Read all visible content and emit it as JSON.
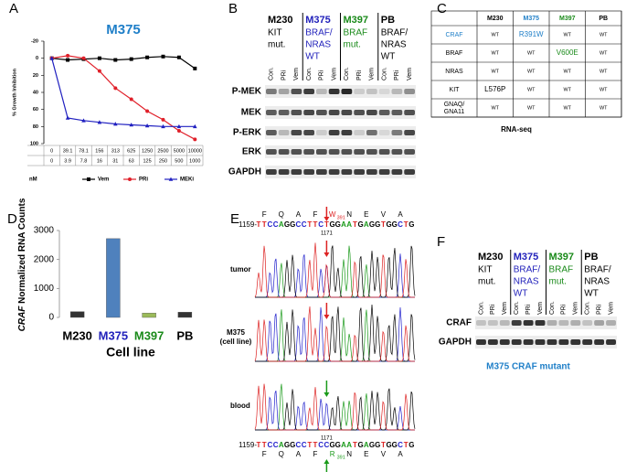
{
  "panel_labels": [
    "A",
    "B",
    "C",
    "D",
    "E",
    "F"
  ],
  "chart_data": [
    {
      "type": "line",
      "title": "M375",
      "title_color": "#1f7fc8",
      "y_label": "% Growth Inhibition",
      "categories": [
        "0",
        "39.1",
        "78.1",
        "156",
        "313",
        "625",
        "1250",
        "2500",
        "5000",
        "10000"
      ],
      "categories_row2": [
        "0",
        "3.9",
        "7.8",
        "16",
        "31",
        "63",
        "125",
        "250",
        "500",
        "1000"
      ],
      "x_unit": "nM",
      "series": [
        {
          "name": "Vem",
          "color": "#000000",
          "marker": "square",
          "values": [
            0,
            2,
            1,
            0,
            2,
            1,
            -1,
            -2,
            -1,
            12
          ]
        },
        {
          "name": "PRi",
          "color": "#e0202a",
          "marker": "circle",
          "values": [
            0,
            -3,
            0,
            15,
            35,
            48,
            62,
            72,
            85,
            95
          ]
        },
        {
          "name": "MEKi",
          "color": "#2020c0",
          "marker": "triangle",
          "values": [
            0,
            70,
            73,
            75,
            77,
            78,
            79,
            80,
            80,
            80
          ]
        }
      ],
      "ylim": [
        100,
        -20
      ],
      "yticks": [
        -20,
        0,
        20,
        40,
        60,
        80,
        100
      ]
    },
    {
      "type": "bar",
      "y_label_italic": "CRAF",
      "y_label": "Normalized RNA Counts",
      "x_label": "Cell line",
      "categories": [
        "M230",
        "M375",
        "M397",
        "PB"
      ],
      "category_colors": [
        "#000000",
        "#2222bb",
        "#1a8a1a",
        "#000000"
      ],
      "values": [
        200,
        2720,
        150,
        180
      ],
      "colors": [
        "#333333",
        "#4f81bd",
        "#9bbb59",
        "#333333"
      ],
      "ylim": [
        0,
        3000
      ],
      "yticks": [
        0,
        1000,
        2000,
        3000
      ]
    }
  ],
  "blot_b": {
    "groups": [
      {
        "name": "M230",
        "color": "#000000",
        "desc": [
          "KIT",
          "mut."
        ]
      },
      {
        "name": "M375",
        "color": "#2222bb",
        "desc": [
          "BRAF/",
          "NRAS",
          "WT"
        ]
      },
      {
        "name": "M397",
        "color": "#1a8a1a",
        "desc": [
          "BRAF",
          "mut."
        ]
      },
      {
        "name": "PB",
        "color": "#000000",
        "desc": [
          "BRAF/",
          "NRAS",
          "WT"
        ]
      }
    ],
    "lanes": [
      "Con.",
      "PRi",
      "Vem"
    ],
    "rows": [
      "P-MEK",
      "MEK",
      "P-ERK",
      "ERK",
      "GAPDH"
    ]
  },
  "table_c": {
    "columns": [
      {
        "name": "M230",
        "color": "#000000"
      },
      {
        "name": "M375",
        "color": "#1f7fc8"
      },
      {
        "name": "M397",
        "color": "#1a8a1a"
      },
      {
        "name": "PB",
        "color": "#000000"
      }
    ],
    "rows": [
      {
        "gene": "CRAF",
        "gene_color": "#1f7fc8",
        "cells": [
          "WT",
          {
            "text": "R391W",
            "color": "#1f7fc8"
          },
          "WT",
          "WT"
        ]
      },
      {
        "gene": "BRAF",
        "cells": [
          "WT",
          "WT",
          {
            "text": "V600E",
            "color": "#1a8a1a"
          },
          "WT"
        ]
      },
      {
        "gene": "NRAS",
        "cells": [
          "WT",
          "WT",
          "WT",
          "WT"
        ]
      },
      {
        "gene": "KIT",
        "cells": [
          {
            "text": "L576P",
            "color": "#000000"
          },
          "WT",
          "WT",
          "WT"
        ]
      },
      {
        "gene": "GNAQ/\nGNA11",
        "gene_lines": [
          "GNAQ/",
          "GNA11"
        ],
        "cells": [
          "WT",
          "WT",
          "WT",
          "WT"
        ]
      }
    ],
    "footer": "RNA-seq"
  },
  "panel_e": {
    "top_aa": [
      "F",
      "Q",
      "A",
      "F",
      "W",
      "N",
      "E",
      "V",
      "A"
    ],
    "top_sub": "391",
    "prefix": "1159-",
    "top_seq": "TTCCAGGCCTTCTGGAATGAGGTGGCTG",
    "position": "1171",
    "traces": [
      [
        "tumor"
      ],
      [
        "M375",
        "(cell line)"
      ],
      [
        "blood"
      ]
    ],
    "bottom_seq": "TTCCAGGCCTTCCGGAATGAGGTGGCTG",
    "bottom_aa": [
      "F",
      "Q",
      "A",
      "F",
      "R",
      "N",
      "E",
      "V",
      "A"
    ],
    "bottom_sub": "391"
  },
  "blot_f": {
    "groups": [
      {
        "name": "M230",
        "color": "#000000",
        "desc": [
          "KIT",
          "mut."
        ]
      },
      {
        "name": "M375",
        "color": "#2222bb",
        "desc": [
          "BRAF/",
          "NRAS",
          "WT"
        ]
      },
      {
        "name": "M397",
        "color": "#1a8a1a",
        "desc": [
          "BRAF",
          "mut."
        ]
      },
      {
        "name": "PB",
        "color": "#000000",
        "desc": [
          "BRAF/",
          "NRAS",
          "WT"
        ]
      }
    ],
    "lanes": [
      "Con.",
      "PRi",
      "Vem"
    ],
    "rows": [
      "CRAF",
      "GAPDH"
    ],
    "caption": "M375 CRAF mutant",
    "caption_color": "#1f7fc8"
  }
}
